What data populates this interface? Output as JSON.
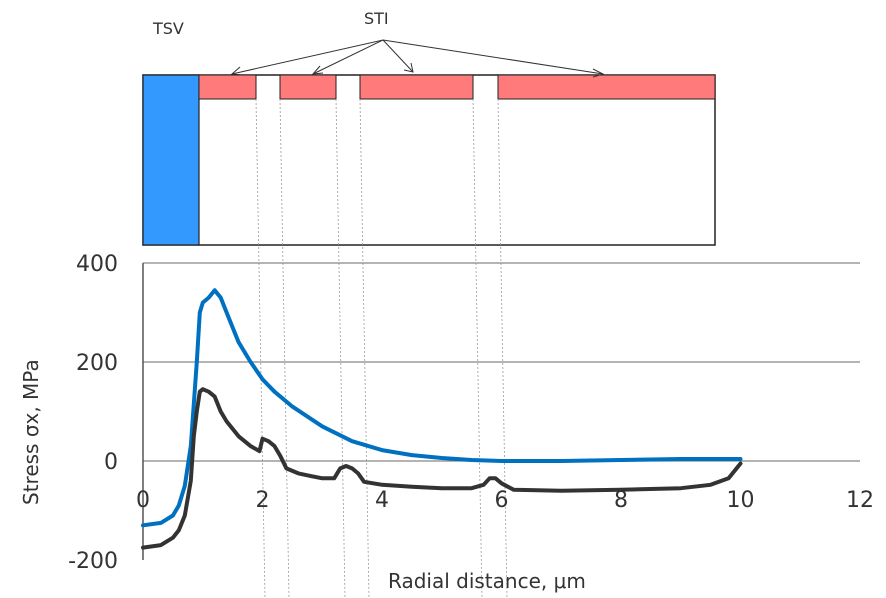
{
  "diagram": {
    "tsv_label": "TSV",
    "sti_label": "STI",
    "tsv_color": "#3399ff",
    "sti_color": "#ff7b7b",
    "outline_color": "#222222"
  },
  "chart_data": {
    "type": "line",
    "title": "",
    "xlabel": "Radial distance, μm",
    "ylabel": "Stress  σx, MPa",
    "xlim": [
      0,
      12
    ],
    "ylim": [
      -200,
      400
    ],
    "xticks": [
      "0",
      "2",
      "4",
      "6",
      "8",
      "10",
      "12"
    ],
    "yticks": [
      "400",
      "200",
      "0",
      "-200"
    ],
    "grid": "horizontal",
    "series": [
      {
        "color": "#0070c0",
        "points": [
          [
            0,
            -130
          ],
          [
            0.3,
            -125
          ],
          [
            0.5,
            -110
          ],
          [
            0.6,
            -90
          ],
          [
            0.7,
            -50
          ],
          [
            0.8,
            30
          ],
          [
            0.9,
            200
          ],
          [
            0.95,
            300
          ],
          [
            1.0,
            320
          ],
          [
            1.1,
            330
          ],
          [
            1.2,
            345
          ],
          [
            1.3,
            330
          ],
          [
            1.4,
            300
          ],
          [
            1.6,
            240
          ],
          [
            1.8,
            200
          ],
          [
            2.0,
            165
          ],
          [
            2.2,
            140
          ],
          [
            2.5,
            110
          ],
          [
            3.0,
            70
          ],
          [
            3.5,
            40
          ],
          [
            4.0,
            22
          ],
          [
            4.5,
            12
          ],
          [
            5.0,
            6
          ],
          [
            5.5,
            2
          ],
          [
            6.0,
            0
          ],
          [
            7.0,
            0
          ],
          [
            8.0,
            2
          ],
          [
            9.0,
            4
          ],
          [
            10.0,
            4
          ]
        ]
      },
      {
        "color": "#333333",
        "points": [
          [
            0,
            -175
          ],
          [
            0.3,
            -170
          ],
          [
            0.5,
            -155
          ],
          [
            0.6,
            -140
          ],
          [
            0.7,
            -110
          ],
          [
            0.8,
            -40
          ],
          [
            0.85,
            50
          ],
          [
            0.9,
            100
          ],
          [
            0.95,
            140
          ],
          [
            1.0,
            145
          ],
          [
            1.1,
            140
          ],
          [
            1.2,
            130
          ],
          [
            1.3,
            100
          ],
          [
            1.4,
            80
          ],
          [
            1.6,
            50
          ],
          [
            1.8,
            30
          ],
          [
            1.95,
            20
          ],
          [
            2.0,
            45
          ],
          [
            2.1,
            40
          ],
          [
            2.2,
            30
          ],
          [
            2.3,
            10
          ],
          [
            2.4,
            -15
          ],
          [
            2.6,
            -25
          ],
          [
            2.8,
            -30
          ],
          [
            3.0,
            -35
          ],
          [
            3.2,
            -35
          ],
          [
            3.3,
            -15
          ],
          [
            3.4,
            -10
          ],
          [
            3.5,
            -15
          ],
          [
            3.6,
            -25
          ],
          [
            3.7,
            -42
          ],
          [
            4.0,
            -48
          ],
          [
            4.5,
            -52
          ],
          [
            5.0,
            -55
          ],
          [
            5.5,
            -55
          ],
          [
            5.7,
            -48
          ],
          [
            5.8,
            -35
          ],
          [
            5.9,
            -35
          ],
          [
            6.0,
            -45
          ],
          [
            6.2,
            -58
          ],
          [
            7.0,
            -60
          ],
          [
            8.0,
            -58
          ],
          [
            9.0,
            -55
          ],
          [
            9.5,
            -48
          ],
          [
            9.8,
            -35
          ],
          [
            10.0,
            -5
          ]
        ]
      }
    ]
  }
}
